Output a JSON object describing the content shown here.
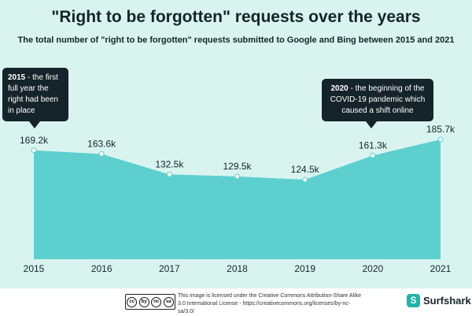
{
  "header": {
    "title": "\"Right to be forgotten\" requests over the years",
    "subtitle": "The total number of \"right to be forgotten\" requests submitted to Google and Bing between 2015 and 2021"
  },
  "annotations": {
    "left_bold": "2015",
    "left_text": " - the first full year the right had been in place",
    "right_bold": "2020",
    "right_text": " - the beginning of the COVID-19 pandemic which caused a shift online"
  },
  "footer": {
    "license_text": "This image is licensed under the Creative Commons Attribution-Share Alike 3.0 International License - https://creativecommons.org/licenses/by-nc-sa/3.0/",
    "brand": "Surfshark",
    "cc_icons": [
      "cc",
      "by",
      "nc",
      "sa"
    ]
  },
  "colors": {
    "background": "#d9f4ef",
    "area": "#5dcfcf",
    "text": "#15242a"
  },
  "chart_data": {
    "type": "area",
    "title": "\"Right to be forgotten\" requests over the years",
    "categories": [
      "2015",
      "2016",
      "2017",
      "2018",
      "2019",
      "2020",
      "2021"
    ],
    "values": [
      169.2,
      163.6,
      132.5,
      129.5,
      124.5,
      161.3,
      185.7
    ],
    "value_labels": [
      "169.2k",
      "163.6k",
      "132.5k",
      "129.5k",
      "124.5k",
      "161.3k",
      "185.7k"
    ],
    "xlabel": "",
    "ylabel": "",
    "ylim": [
      0,
      190
    ],
    "grid": false
  }
}
